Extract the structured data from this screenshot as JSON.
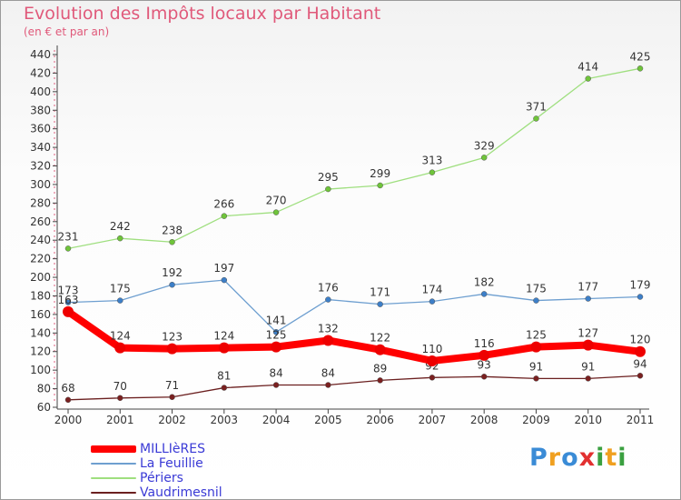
{
  "title": "Evolution des Impôts locaux par Habitant",
  "subtitle": "(en € et par an)",
  "logo": {
    "text": "Proxiti",
    "colors": [
      "#3a8bd6",
      "#f0a020",
      "#3a8bd6",
      "#e23030",
      "#3aa040",
      "#f0a020",
      "#3aa040"
    ]
  },
  "chart_data": {
    "type": "line",
    "x": [
      2000,
      2001,
      2002,
      2003,
      2004,
      2005,
      2006,
      2007,
      2008,
      2009,
      2010,
      2011
    ],
    "ylim": [
      60,
      440
    ],
    "yticks": [
      60,
      80,
      100,
      120,
      140,
      160,
      180,
      200,
      220,
      240,
      260,
      280,
      300,
      320,
      340,
      360,
      380,
      400,
      420,
      440
    ],
    "grid": false,
    "legend_position": "bottom-left",
    "series": [
      {
        "name": "Vaudrimesnil",
        "color": "#6b1f1f",
        "dot": "#7a2020",
        "values": [
          68,
          70,
          71,
          81,
          84,
          84,
          89,
          92,
          93,
          91,
          91,
          94
        ]
      },
      {
        "name": "La Feuillie",
        "color": "#6e9fd0",
        "dot": "#3d7fc8",
        "values": [
          173,
          175,
          192,
          197,
          141,
          176,
          171,
          174,
          182,
          175,
          177,
          179
        ]
      },
      {
        "name": "Périers",
        "color": "#9fdf7f",
        "dot": "#6fc43a",
        "values": [
          231,
          242,
          238,
          266,
          270,
          295,
          299,
          313,
          329,
          371,
          414,
          425
        ]
      },
      {
        "name": "MILLIèRES",
        "color": "#ff0000",
        "dot": "#ee0000",
        "values": [
          163,
          124,
          123,
          124,
          125,
          132,
          122,
          110,
          116,
          125,
          127,
          120
        ]
      }
    ],
    "legend_order": [
      "MILLIèRES",
      "La Feuillie",
      "Périers",
      "Vaudrimesnil"
    ]
  }
}
